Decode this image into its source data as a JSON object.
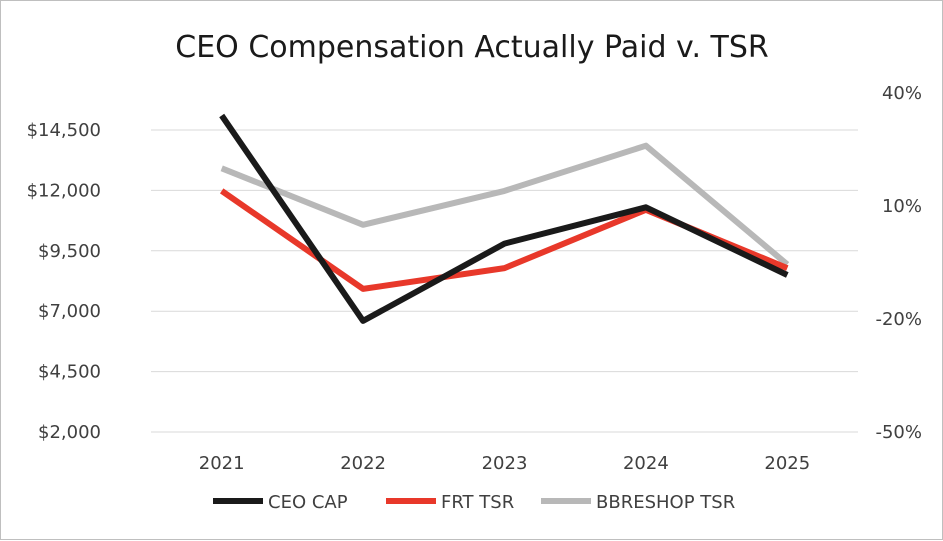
{
  "chart_data": {
    "type": "line",
    "title": "CEO Compensation Actually Paid v. TSR",
    "categories": [
      "2021",
      "2022",
      "2023",
      "2024",
      "2025"
    ],
    "y_left": {
      "min": 2000,
      "max": 16000,
      "ticks": [
        2000,
        4500,
        7000,
        9500,
        12000,
        14500
      ],
      "tick_labels": [
        "$2,000",
        "$4,500",
        "$7,000",
        "$9,500",
        "$12,000",
        "$14,500"
      ]
    },
    "y_right": {
      "min": -50,
      "max": 40,
      "ticks": [
        -50,
        -20,
        10,
        40
      ],
      "tick_labels": [
        "-50%",
        "-20%",
        "10%",
        "40%"
      ]
    },
    "grid": true,
    "legend_position": "bottom",
    "series": [
      {
        "name": "CEO CAP",
        "axis": "left",
        "color": "#1a1a1a",
        "values": [
          15100,
          6600,
          9800,
          11300,
          8500
        ]
      },
      {
        "name": "FRT TSR",
        "axis": "right",
        "color": "#e8382a",
        "values": [
          14,
          -12,
          -6.5,
          9,
          -6.5
        ]
      },
      {
        "name": "BBRESHOP TSR",
        "axis": "right",
        "color": "#b8b8b8",
        "values": [
          20,
          5,
          14,
          26,
          -5.5
        ]
      }
    ]
  }
}
